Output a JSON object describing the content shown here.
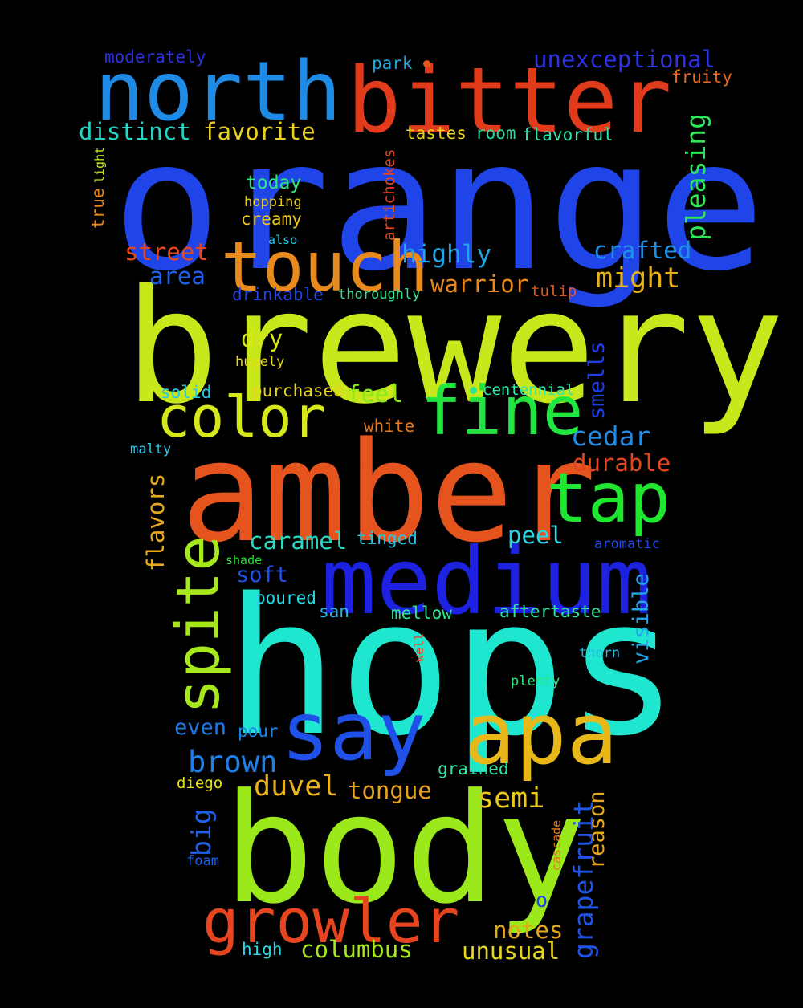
{
  "words": [
    {
      "text": "orange",
      "color": "#1f44e8"
    },
    {
      "text": "brewery",
      "color": "#c8e81b"
    },
    {
      "text": "hops",
      "color": "#1ee6cf"
    },
    {
      "text": "amber",
      "color": "#e6541e"
    },
    {
      "text": "body",
      "color": "#9be81b"
    },
    {
      "text": "medium",
      "color": "#1c22e0"
    },
    {
      "text": "bitter",
      "color": "#e23b1c"
    },
    {
      "text": "north",
      "color": "#1e8ce6"
    },
    {
      "text": "touch",
      "color": "#e88a1c"
    },
    {
      "text": "apa",
      "color": "#e8b81b"
    },
    {
      "text": "say",
      "color": "#1f50e8"
    },
    {
      "text": "fine",
      "color": "#22e640"
    },
    {
      "text": "tap",
      "color": "#1fe62f"
    },
    {
      "text": "color",
      "color": "#d6e81b"
    },
    {
      "text": "growler",
      "color": "#e6451e"
    },
    {
      "text": "spite",
      "color": "#a6e81b"
    },
    {
      "text": "unexceptional",
      "color": "#2c32e0"
    },
    {
      "text": "distinct",
      "color": "#22d6c6"
    },
    {
      "text": "favorite",
      "color": "#e8d01b"
    },
    {
      "text": "pleasing",
      "color": "#2ee65a"
    },
    {
      "text": "highly",
      "color": "#1ea6e6"
    },
    {
      "text": "crafted",
      "color": "#1e90e6"
    },
    {
      "text": "might",
      "color": "#e8b01b"
    },
    {
      "text": "street",
      "color": "#e6481e"
    },
    {
      "text": "area",
      "color": "#1f62e8"
    },
    {
      "text": "warrior",
      "color": "#e6881e"
    },
    {
      "text": "brown",
      "color": "#1e80e6"
    },
    {
      "text": "duvel",
      "color": "#e8b01b"
    },
    {
      "text": "tongue",
      "color": "#e8a21b"
    },
    {
      "text": "semi",
      "color": "#e8c81b"
    },
    {
      "text": "caramel",
      "color": "#2ad6c0"
    },
    {
      "text": "peel",
      "color": "#26d8e6"
    },
    {
      "text": "cedar",
      "color": "#1e8ce6"
    },
    {
      "text": "durable",
      "color": "#e6461e"
    },
    {
      "text": "notes",
      "color": "#e8a81b"
    },
    {
      "text": "unusual",
      "color": "#e8d41b"
    },
    {
      "text": "columbus",
      "color": "#a6e81b"
    },
    {
      "text": "feel",
      "color": "#8ae81b"
    },
    {
      "text": "dry",
      "color": "#d8e81b"
    },
    {
      "text": "soft",
      "color": "#1f50e8"
    },
    {
      "text": "even",
      "color": "#1e78e6"
    },
    {
      "text": "pour",
      "color": "#1e84e6"
    },
    {
      "text": "flavors",
      "color": "#e8a81b"
    },
    {
      "text": "visible",
      "color": "#1ea6e6"
    },
    {
      "text": "smells",
      "color": "#1f3ce8"
    },
    {
      "text": "grapefruit",
      "color": "#1f54e8"
    },
    {
      "text": "reason",
      "color": "#e8a81b"
    },
    {
      "text": "big",
      "color": "#1f60e8"
    },
    {
      "text": "moderately",
      "color": "#2c32e0"
    },
    {
      "text": "park",
      "color": "#1ea6e6"
    },
    {
      "text": "fruity",
      "color": "#e6681e"
    },
    {
      "text": "tastes",
      "color": "#e8d21b"
    },
    {
      "text": "room",
      "color": "#2ed69a"
    },
    {
      "text": "flavorful",
      "color": "#2ee6b0"
    },
    {
      "text": "today",
      "color": "#2ee680"
    },
    {
      "text": "hopping",
      "color": "#e8d01b"
    },
    {
      "text": "creamy",
      "color": "#e8c41b"
    },
    {
      "text": "artichokes",
      "color": "#e6441e"
    },
    {
      "text": "true",
      "color": "#e6881e"
    },
    {
      "text": "light",
      "color": "#b8e81b"
    },
    {
      "text": "also",
      "color": "#26c8e6"
    },
    {
      "text": "drinkable",
      "color": "#1f44e8"
    },
    {
      "text": "thoroughly",
      "color": "#2ee690"
    },
    {
      "text": "tulip",
      "color": "#e6581e"
    },
    {
      "text": "hugely",
      "color": "#e8d81b"
    },
    {
      "text": "solid",
      "color": "#26c8e6"
    },
    {
      "text": "purchased",
      "color": "#e8d41b"
    },
    {
      "text": "centennial",
      "color": "#2ee6a8"
    },
    {
      "text": "white",
      "color": "#e6781e"
    },
    {
      "text": "malty",
      "color": "#26c8e6"
    },
    {
      "text": "tinged",
      "color": "#26c8e6"
    },
    {
      "text": "aromatic",
      "color": "#1f4ae8"
    },
    {
      "text": "shade",
      "color": "#22e630"
    },
    {
      "text": "poured",
      "color": "#26d8e6"
    },
    {
      "text": "san",
      "color": "#26b8e6"
    },
    {
      "text": "mellow",
      "color": "#2ee690"
    },
    {
      "text": "aftertaste",
      "color": "#2ee6a0"
    },
    {
      "text": "well",
      "color": "#e6441e"
    },
    {
      "text": "thorn",
      "color": "#26b8e6"
    },
    {
      "text": "plenty",
      "color": "#2ee680"
    },
    {
      "text": "grained",
      "color": "#2ee6a0"
    },
    {
      "text": "diego",
      "color": "#e8e01b"
    },
    {
      "text": "cascade",
      "color": "#e6781e"
    },
    {
      "text": "foam",
      "color": "#1f60e8"
    },
    {
      "text": "o",
      "color": "#1f44e8"
    },
    {
      "text": "high",
      "color": "#26d8e6"
    }
  ],
  "dots": [
    {
      "color": "#e6541e"
    },
    {
      "color": "#2ee690"
    }
  ]
}
